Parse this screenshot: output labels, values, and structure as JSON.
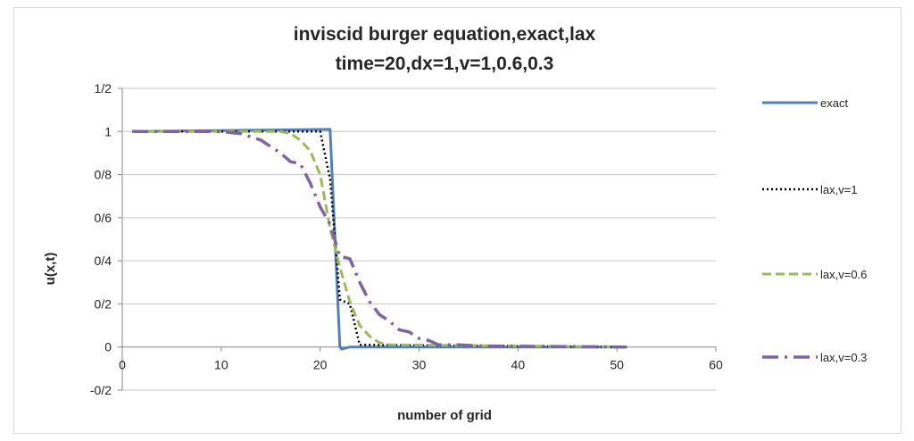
{
  "chart_data": {
    "type": "line",
    "title_lines": [
      "inviscid burger equation,exact,lax",
      "time=20,dx=1,v=1,0.6,0.3"
    ],
    "xlabel": "number of grid",
    "ylabel": "u(x,t)",
    "xlim": [
      0,
      60
    ],
    "ylim": [
      -0.2,
      1.2
    ],
    "x_ticks": [
      {
        "value": 0,
        "label": "0"
      },
      {
        "value": 10,
        "label": "10"
      },
      {
        "value": 20,
        "label": "20"
      },
      {
        "value": 30,
        "label": "30"
      },
      {
        "value": 40,
        "label": "40"
      },
      {
        "value": 50,
        "label": "50"
      },
      {
        "value": 60,
        "label": "60"
      }
    ],
    "y_ticks": [
      {
        "value": -0.2,
        "label": "-0/2"
      },
      {
        "value": 0,
        "label": "0"
      },
      {
        "value": 0.2,
        "label": "0/2"
      },
      {
        "value": 0.4,
        "label": "0/4"
      },
      {
        "value": 0.6,
        "label": "0/6"
      },
      {
        "value": 0.8,
        "label": "0/8"
      },
      {
        "value": 1,
        "label": "1"
      },
      {
        "value": 1.2,
        "label": "1/2"
      }
    ],
    "grid": "horizontal",
    "legend_position": "right",
    "series": [
      {
        "name": "exact",
        "color": "#4f81bd",
        "style": "solid",
        "x": [
          1,
          21,
          21.8,
          22,
          22.2,
          23,
          51
        ],
        "y": [
          1,
          1.01,
          0.2,
          0,
          -0.01,
          0,
          0
        ]
      },
      {
        "name": "lax,v=1",
        "color": "#000000",
        "style": "dotted",
        "x": [
          1,
          19,
          20,
          21,
          22,
          23,
          24,
          51
        ],
        "y": [
          1,
          1,
          1,
          0.78,
          0.22,
          0.2,
          0.01,
          0
        ]
      },
      {
        "name": "lax,v=0.6",
        "color": "#9bbb59",
        "style": "dashed",
        "x": [
          1,
          16,
          17,
          18,
          19,
          20,
          21,
          22,
          23,
          24,
          25,
          26,
          27,
          51
        ],
        "y": [
          1,
          1,
          0.99,
          0.96,
          0.91,
          0.8,
          0.55,
          0.37,
          0.21,
          0.1,
          0.05,
          0.02,
          0.01,
          0
        ]
      },
      {
        "name": "lax,v=0.3",
        "color": "#8064a2",
        "style": "dashdot",
        "x": [
          1,
          10,
          12,
          14,
          16,
          17,
          18,
          19,
          20,
          21,
          22,
          23,
          24,
          25,
          26,
          27,
          28,
          29,
          30,
          31,
          32,
          34,
          36,
          51
        ],
        "y": [
          1,
          1,
          0.99,
          0.96,
          0.9,
          0.86,
          0.85,
          0.76,
          0.65,
          0.57,
          0.42,
          0.41,
          0.3,
          0.21,
          0.15,
          0.12,
          0.08,
          0.07,
          0.04,
          0.03,
          0.01,
          0.01,
          0.005,
          0
        ]
      }
    ]
  }
}
